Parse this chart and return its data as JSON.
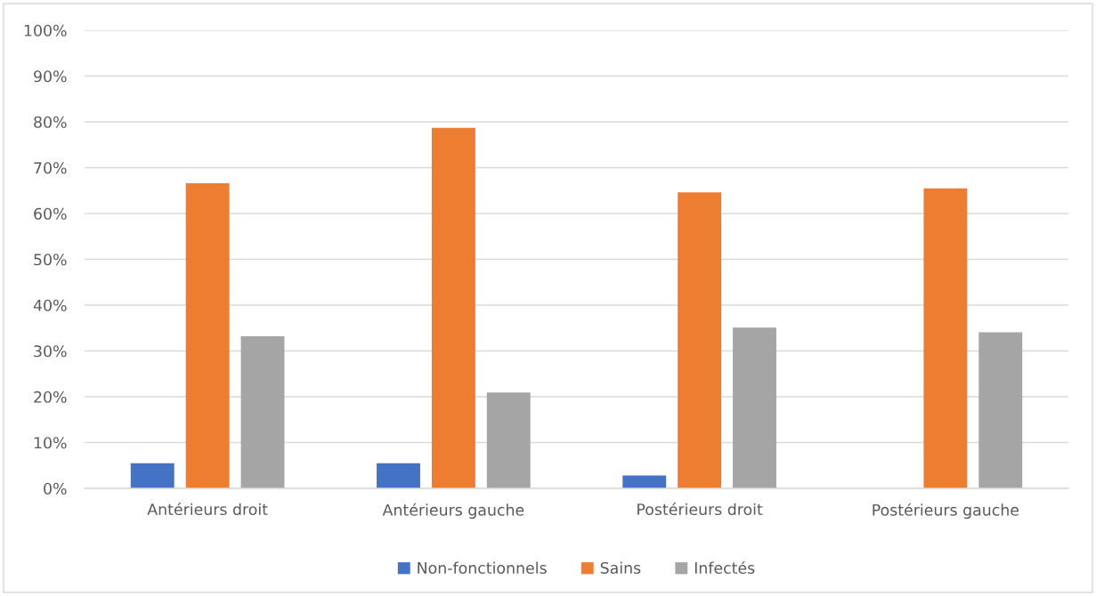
{
  "chart_data": {
    "type": "bar",
    "categories": [
      "Antérieurs droit",
      "Antérieurs gauche",
      "Postérieurs droit",
      "Postérieurs gauche"
    ],
    "series": [
      {
        "name": "Non-fonctionnels",
        "color": "#4472c4",
        "values": [
          5.5,
          5.5,
          2.8,
          0
        ]
      },
      {
        "name": "Sains",
        "color": "#ed7d31",
        "values": [
          66.6,
          78.7,
          64.6,
          65.5
        ]
      },
      {
        "name": "Infectés",
        "color": "#a5a5a5",
        "values": [
          33.2,
          20.9,
          35.1,
          34.1
        ]
      }
    ],
    "ylim": [
      0,
      100
    ],
    "yticks": [
      {
        "value": 0,
        "label": "0%"
      },
      {
        "value": 10,
        "label": "10%"
      },
      {
        "value": 20,
        "label": "20%"
      },
      {
        "value": 30,
        "label": "30%"
      },
      {
        "value": 40,
        "label": "40%"
      },
      {
        "value": 50,
        "label": "50%"
      },
      {
        "value": 60,
        "label": "60%"
      },
      {
        "value": 70,
        "label": "70%"
      },
      {
        "value": 80,
        "label": "80%"
      },
      {
        "value": 90,
        "label": "90%"
      },
      {
        "value": 100,
        "label": "100%"
      }
    ],
    "grid": "y",
    "legend": "bottom"
  }
}
